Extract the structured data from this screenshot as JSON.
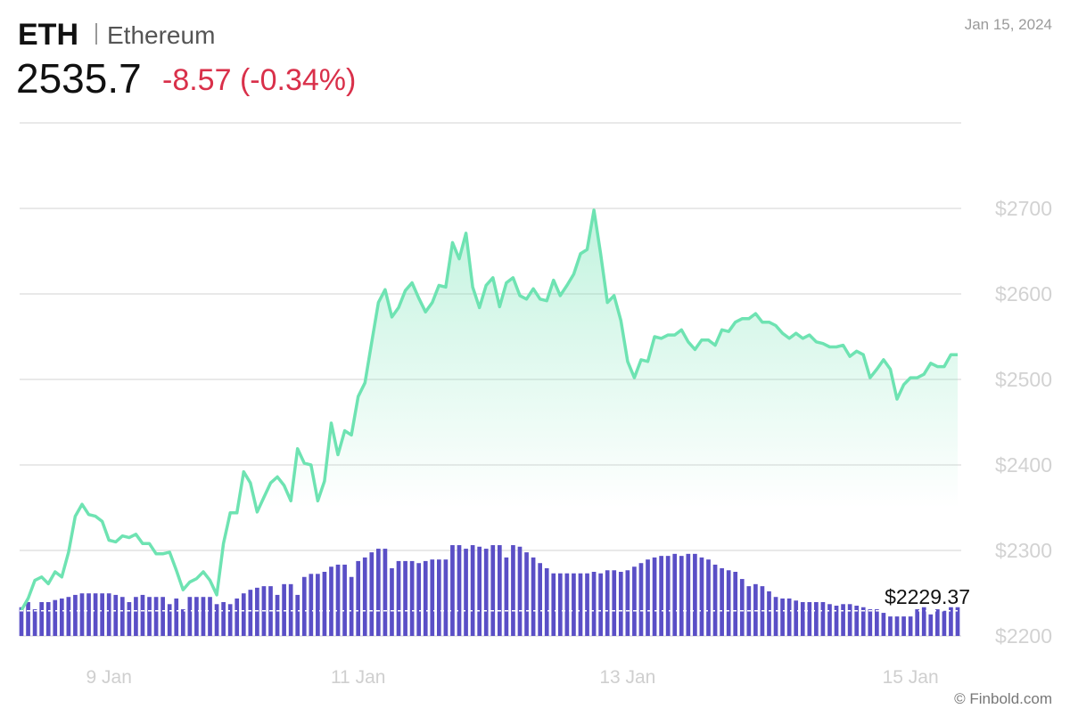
{
  "chart_data": {
    "type": "line",
    "title": "ETH",
    "subtitle": "Ethereum",
    "price": "2535.7",
    "change": "-8.57 (-0.34%)",
    "date": "Jan 15, 2024",
    "source": "© Finbold.com",
    "categories": [
      null,
      null,
      null,
      null,
      null,
      null,
      null,
      null,
      null,
      null,
      null,
      null,
      null,
      "9 Jan",
      null,
      null,
      null,
      null,
      null,
      null,
      null,
      null,
      null,
      null,
      null,
      null,
      null,
      null,
      null,
      null,
      null,
      null,
      null,
      null,
      null,
      null,
      null,
      null,
      null,
      null,
      null,
      null,
      null,
      null,
      null,
      null,
      null,
      null,
      null,
      null,
      "11 Jan",
      null,
      null,
      null,
      null,
      null,
      null,
      null,
      null,
      null,
      null,
      null,
      null,
      null,
      null,
      null,
      null,
      null,
      null,
      null,
      null,
      null,
      null,
      null,
      null,
      null,
      null,
      null,
      null,
      null,
      null,
      null,
      null,
      null,
      null,
      null,
      null,
      null,
      null,
      null,
      "13 Jan",
      null,
      null,
      null,
      null,
      null,
      null,
      null,
      null,
      null,
      null,
      null,
      null,
      null,
      null,
      null,
      null,
      null,
      null,
      null,
      null,
      null,
      null,
      null,
      null,
      null,
      null,
      null,
      null,
      null,
      null,
      null,
      null,
      null,
      null,
      null,
      null,
      null,
      null,
      null,
      null,
      null,
      "15 Jan",
      null,
      null,
      null,
      null,
      null,
      null,
      null
    ],
    "series": [
      {
        "type": "line",
        "color": "#6ee3b2",
        "values": [
          2230,
          2244,
          2265,
          2269,
          2261,
          2275,
          2269,
          2298,
          2340,
          2354,
          2342,
          2340,
          2334,
          2312,
          2310,
          2317,
          2315,
          2319,
          2308,
          2308,
          2296,
          2296,
          2298,
          2277,
          2254,
          2263,
          2267,
          2275,
          2265,
          2248,
          2308,
          2344,
          2344,
          2392,
          2379,
          2345,
          2362,
          2379,
          2386,
          2376,
          2358,
          2419,
          2402,
          2400,
          2358,
          2381,
          2449,
          2412,
          2440,
          2435,
          2480,
          2496,
          2543,
          2590,
          2605,
          2573,
          2584,
          2604,
          2613,
          2595,
          2579,
          2590,
          2610,
          2608,
          2660,
          2641,
          2671,
          2608,
          2584,
          2610,
          2619,
          2585,
          2613,
          2619,
          2598,
          2594,
          2606,
          2594,
          2592,
          2616,
          2598,
          2610,
          2623,
          2647,
          2652,
          2698,
          2647,
          2590,
          2598,
          2569,
          2521,
          2502,
          2523,
          2521,
          2550,
          2548,
          2552,
          2552,
          2558,
          2544,
          2535,
          2546,
          2546,
          2540,
          2558,
          2556,
          2567,
          2571,
          2571,
          2577,
          2567,
          2567,
          2563,
          2554,
          2548,
          2554,
          2548,
          2552,
          2544,
          2542,
          2538,
          2538,
          2540,
          2527,
          2533,
          2529,
          2502,
          2512,
          2523,
          2512,
          2477,
          2494,
          2502,
          2502,
          2506,
          2519,
          2515,
          2515,
          2529,
          2529
        ]
      },
      {
        "type": "bar",
        "axis": "y2",
        "color": "#5a4fc6",
        "values": [
          5.6,
          6.6,
          5.2,
          6.6,
          6.6,
          7.0,
          7.3,
          7.6,
          8.0,
          8.3,
          8.3,
          8.3,
          8.3,
          8.3,
          8.0,
          7.6,
          6.6,
          7.6,
          8.0,
          7.6,
          7.6,
          7.6,
          6.2,
          7.3,
          5.2,
          7.6,
          7.6,
          7.6,
          7.6,
          6.2,
          6.6,
          6.2,
          7.3,
          8.3,
          9.0,
          9.4,
          9.7,
          9.7,
          8.0,
          10.1,
          10.1,
          8.0,
          11.5,
          12.1,
          12.1,
          12.5,
          13.5,
          13.9,
          13.9,
          11.5,
          14.6,
          15.3,
          16.3,
          17.0,
          17.0,
          13.2,
          14.6,
          14.6,
          14.6,
          14.2,
          14.6,
          14.9,
          14.9,
          14.9,
          17.7,
          17.7,
          17.0,
          17.7,
          17.4,
          17.0,
          17.7,
          17.7,
          15.3,
          17.7,
          17.4,
          16.3,
          15.3,
          14.2,
          13.2,
          12.2,
          12.2,
          12.2,
          12.2,
          12.2,
          12.2,
          12.5,
          12.2,
          12.8,
          12.8,
          12.5,
          12.8,
          13.5,
          14.2,
          14.9,
          15.3,
          15.6,
          15.6,
          16.0,
          15.6,
          16.0,
          16.0,
          15.3,
          14.9,
          13.9,
          13.2,
          12.8,
          12.5,
          11.1,
          9.7,
          10.1,
          9.7,
          8.7,
          7.6,
          7.3,
          7.3,
          6.9,
          6.6,
          6.6,
          6.6,
          6.6,
          6.2,
          5.9,
          6.2,
          6.2,
          5.9,
          5.6,
          5.2,
          5.2,
          4.5,
          3.8,
          3.8,
          3.8,
          3.8,
          5.2,
          5.6,
          4.2,
          5.2,
          4.9,
          5.6,
          5.6
        ]
      }
    ],
    "ylim": [
      2200,
      2800
    ],
    "yticks": [
      {
        "value": 2200,
        "label": "$2200"
      },
      {
        "value": 2300,
        "label": "$2300"
      },
      {
        "value": 2400,
        "label": "$2400"
      },
      {
        "value": 2500,
        "label": "$2500"
      },
      {
        "value": 2600,
        "label": "$2600"
      },
      {
        "value": 2700,
        "label": "$2700"
      }
    ],
    "y2lim": [
      0,
      100
    ],
    "low_line": {
      "value": 2229.37,
      "label": "$2229.37"
    },
    "grid": true
  }
}
